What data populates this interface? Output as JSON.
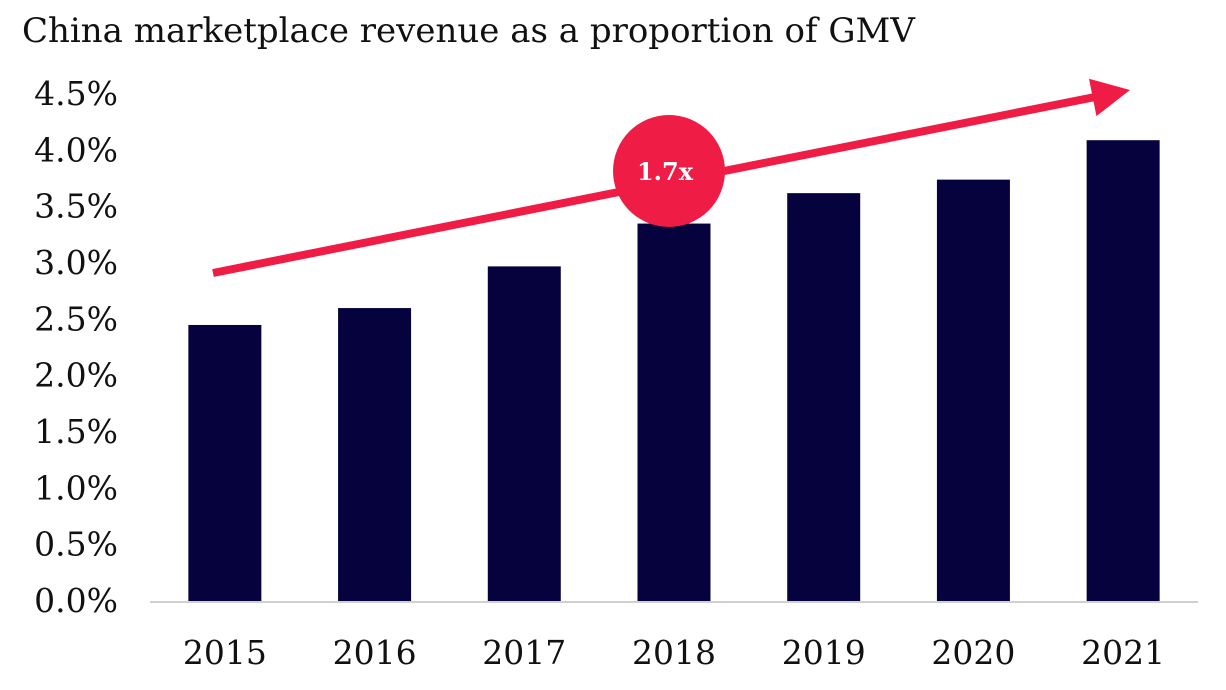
{
  "chart_data": {
    "type": "bar",
    "title": "China marketplace revenue as a proportion of GMV",
    "xlabel": "",
    "ylabel": "",
    "categories": [
      "2015",
      "2016",
      "2017",
      "2018",
      "2019",
      "2020",
      "2021"
    ],
    "values": [
      2.45,
      2.6,
      2.97,
      3.35,
      3.62,
      3.74,
      4.09
    ],
    "value_unit": "%",
    "ylim": [
      0,
      4.5
    ],
    "yticks": [
      "0.0%",
      "0.5%",
      "1.0%",
      "1.5%",
      "2.0%",
      "2.5%",
      "3.0%",
      "3.5%",
      "4.0%",
      "4.5%"
    ],
    "grid": false,
    "legend": "none",
    "bar_color": "#05023e",
    "annotation": {
      "type": "trend-arrow",
      "label": "1.7x",
      "color": "#ef1c45"
    }
  }
}
